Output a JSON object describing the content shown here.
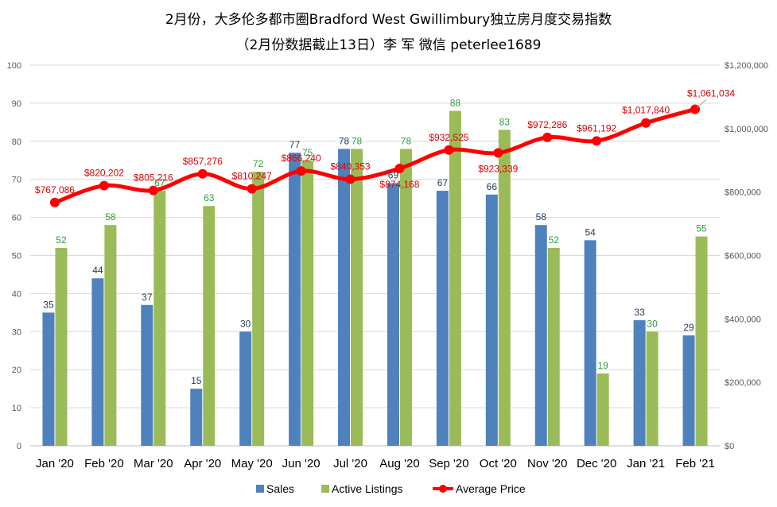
{
  "chart_data": {
    "type": "bar",
    "title": "2月份，大多伦多都市圈Bradford West Gwillimbury独立房月度交易指数",
    "subtitle": "（2月份数据截止13日）李 军  微信  peterlee1689",
    "categories": [
      "Jan '20",
      "Feb '20",
      "Mar '20",
      "Apr '20",
      "May '20",
      "Jun '20",
      "Jul '20",
      "Aug '20",
      "Sep '20",
      "Oct '20",
      "Nov '20",
      "Dec '20",
      "Jan '21",
      "Feb '21"
    ],
    "series": [
      {
        "name": "Sales",
        "type": "bar",
        "axis": "left",
        "color": "#4f81bd",
        "values": [
          35,
          44,
          37,
          15,
          30,
          77,
          78,
          69,
          67,
          66,
          58,
          54,
          33,
          29
        ],
        "labels": [
          "35",
          "44",
          "37",
          "15",
          "30",
          "77",
          "78",
          "69",
          "67",
          "66",
          "58",
          "54",
          "33",
          "29"
        ]
      },
      {
        "name": "Active Listings",
        "type": "bar",
        "axis": "left",
        "color": "#9bbb59",
        "values": [
          52,
          58,
          67,
          63,
          72,
          75,
          78,
          78,
          88,
          83,
          52,
          19,
          30,
          55
        ],
        "labels": [
          "52",
          "58",
          "67",
          "63",
          "72",
          "75",
          "78",
          "78",
          "88",
          "83",
          "52",
          "19",
          "30",
          "55"
        ]
      },
      {
        "name": "Average Price",
        "type": "line",
        "axis": "right",
        "color": "#ff0000",
        "values": [
          767086,
          820202,
          805216,
          857276,
          810247,
          866240,
          840353,
          874168,
          932525,
          923339,
          972286,
          961192,
          1017840,
          1061034
        ],
        "labels": [
          "$767,086",
          "$820,202",
          "$805,216",
          "$857,276",
          "$810,247",
          "$866,240",
          "$840,353",
          "$874,168",
          "$932,525",
          "$923,339",
          "$972,286",
          "$961,192",
          "$1,017,840",
          "$1,061,034"
        ]
      }
    ],
    "y_left": {
      "min": 0,
      "max": 100,
      "ticks": [
        "0",
        "10",
        "20",
        "30",
        "40",
        "50",
        "60",
        "70",
        "80",
        "90",
        "100"
      ]
    },
    "y_right": {
      "min": 0,
      "max": 1200000,
      "ticks": [
        "$0",
        "$200,000",
        "$400,000",
        "$600,000",
        "$800,000",
        "$1,000,000",
        "$1,200,000"
      ]
    },
    "grid": true,
    "legend": "bottom"
  }
}
